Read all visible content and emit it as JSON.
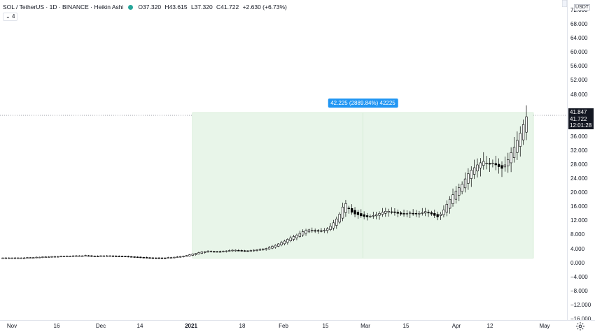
{
  "legend": {
    "symbol": "SOL / TetherUS · 1D · BINANCE · Heikin Ashi",
    "open_key": "O",
    "open": "37.320",
    "high_key": "H",
    "high": "43.615",
    "low_key": "L",
    "low": "37.320",
    "close_key": "C",
    "close": "41.722",
    "change": "+2.630 (+6.73%)",
    "collapse_label": "4",
    "status_color": "#26a69a"
  },
  "price_axis": {
    "currency": "USDT",
    "labels": [
      "72.000",
      "68.000",
      "64.000",
      "60.000",
      "56.000",
      "52.000",
      "48.000",
      "44.000",
      "41.847",
      "41.722",
      "12:01:28",
      "36.000",
      "32.000",
      "28.000",
      "24.000",
      "20.000",
      "16.000",
      "12.000",
      "8.000",
      "4.000",
      "0.000",
      "−4.000",
      "−8.000",
      "−12.000",
      "−16.000"
    ],
    "ticks": [
      "72.000",
      "68.000",
      "64.000",
      "60.000",
      "56.000",
      "52.000",
      "48.000",
      "36.000",
      "32.000",
      "28.000",
      "24.000",
      "20.000",
      "16.000",
      "12.000",
      "8.000",
      "4.000",
      "0.000",
      "−4.000",
      "−8.000",
      "−12.000",
      "−16.000"
    ],
    "high_label": "41.847",
    "last_price": "41.722",
    "countdown": "12:01:28"
  },
  "time_axis": {
    "labels": [
      "Nov",
      "16",
      "Dec",
      "14",
      "2021",
      "18",
      "Feb",
      "15",
      "Mar",
      "15",
      "Apr",
      "12",
      "May"
    ]
  },
  "measure": {
    "label": "42.225 (2889.84%) 42225",
    "fill_color": "#e8f5e9",
    "box_color": "#c8e6c9"
  },
  "colors": {
    "candle_stroke": "#000000",
    "up_fill": "#ffffff",
    "down_fill": "#000000",
    "accent": "#2196f3"
  },
  "icons": {
    "settings": "gear-icon"
  },
  "chart_data": {
    "type": "candlestick",
    "chart_style": "Heikin Ashi",
    "ylim": [
      -16,
      72
    ],
    "y_ticks": [
      72,
      68,
      64,
      60,
      56,
      52,
      48,
      36,
      32,
      28,
      24,
      20,
      16,
      12,
      8,
      4,
      0,
      -4,
      -8,
      -12,
      -16
    ],
    "measure": {
      "from_price": 1.46,
      "to_price": 43.685,
      "change": 42.225,
      "change_pct": 2889.84
    },
    "last_price": 41.722,
    "high": 41.847,
    "close_series": [
      1.5,
      1.5,
      1.5,
      1.5,
      1.5,
      1.5,
      1.5,
      1.5,
      1.6,
      1.6,
      1.6,
      1.7,
      1.7,
      1.8,
      1.8,
      1.8,
      1.9,
      1.9,
      1.9,
      2.0,
      2.0,
      2.0,
      2.0,
      2.1,
      2.1,
      2.1,
      2.1,
      2.2,
      2.1,
      2.0,
      2.0,
      2.0,
      2.1,
      2.1,
      2.1,
      2.1,
      2.0,
      2.0,
      2.0,
      2.0,
      1.9,
      1.8,
      1.8,
      1.7,
      1.7,
      1.6,
      1.6,
      1.5,
      1.5,
      1.5,
      1.5,
      1.5,
      1.5,
      1.5,
      1.6,
      1.6,
      1.7,
      1.8,
      1.9,
      2.0,
      2.2,
      2.4,
      2.6,
      2.8,
      3.0,
      3.2,
      3.3,
      3.4,
      3.4,
      3.3,
      3.3,
      3.3,
      3.4,
      3.5,
      3.6,
      3.7,
      3.7,
      3.6,
      3.5,
      3.5,
      3.5,
      3.6,
      3.7,
      3.8,
      3.9,
      4.0,
      4.2,
      4.5,
      4.8,
      5.1,
      5.5,
      5.9,
      6.3,
      6.8,
      7.2,
      7.6,
      8.0,
      8.5,
      9.0,
      9.3,
      9.5,
      9.4,
      9.3,
      9.2,
      9.2,
      9.4,
      9.8,
      10.5,
      11.5,
      12.6,
      14.0,
      16.0,
      17.0,
      15.5,
      14.5,
      14.0,
      13.8,
      13.5,
      13.3,
      13.2,
      13.4,
      13.6,
      13.8,
      14.2,
      14.5,
      14.8,
      14.8,
      14.6,
      14.4,
      14.2,
      14.0,
      14.0,
      14.2,
      14.3,
      14.2,
      14.1,
      14.2,
      14.4,
      14.7,
      14.3,
      14.0,
      13.6,
      13.2,
      14.0,
      15.2,
      16.8,
      18.2,
      19.5,
      20.5,
      21.5,
      22.5,
      24.0,
      25.5,
      26.5,
      27.2,
      28.0,
      28.6,
      29.0,
      28.5,
      28.2,
      28.5,
      28.0,
      27.5,
      27.0,
      28.0,
      29.5,
      31.5,
      33.0,
      35.0,
      37.0,
      39.5,
      41.722
    ]
  }
}
